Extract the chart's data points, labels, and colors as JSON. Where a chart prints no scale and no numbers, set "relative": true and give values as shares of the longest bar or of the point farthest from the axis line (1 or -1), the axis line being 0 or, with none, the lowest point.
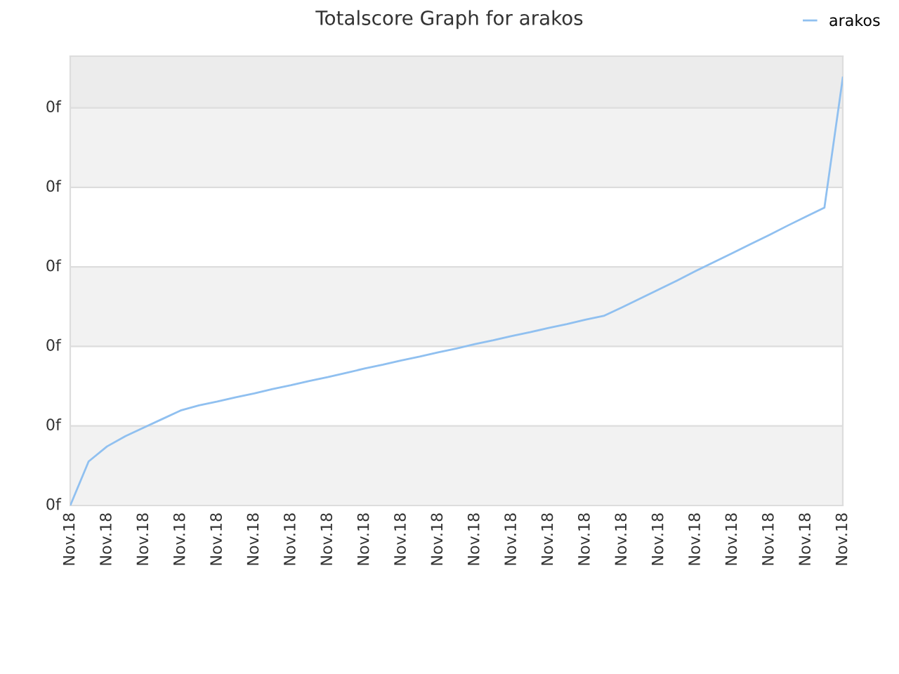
{
  "chart_data": {
    "type": "line",
    "title": "Totalscore Graph for arakos",
    "relative": true,
    "categories": [
      "Nov.18",
      null,
      "Nov.18",
      null,
      "Nov.18",
      null,
      "Nov.18",
      null,
      "Nov.18",
      null,
      "Nov.18",
      null,
      "Nov.18",
      null,
      "Nov.18",
      null,
      "Nov.18",
      null,
      "Nov.18",
      null,
      "Nov.18",
      null,
      "Nov.18",
      null,
      "Nov.18",
      null,
      "Nov.18",
      null,
      "Nov.18",
      null,
      "Nov.18",
      null,
      "Nov.18",
      null,
      "Nov.18",
      null,
      "Nov.18",
      null,
      "Nov.18",
      null,
      "Nov.18",
      null,
      "Nov.18"
    ],
    "series": [
      {
        "name": "arakos",
        "color": "#90c0f0",
        "values": [
          0,
          0.103,
          0.138,
          0.162,
          0.182,
          0.202,
          0.222,
          0.234,
          0.243,
          0.253,
          0.262,
          0.272,
          0.281,
          0.291,
          0.3,
          0.31,
          0.32,
          0.329,
          0.339,
          0.348,
          0.358,
          0.367,
          0.377,
          0.386,
          0.396,
          0.405,
          0.415,
          0.424,
          0.434,
          0.443,
          0.463,
          0.484,
          0.505,
          0.526,
          0.548,
          0.569,
          0.59,
          0.611,
          0.632,
          0.654,
          0.675,
          0.696,
          1
        ]
      }
    ],
    "annotations": [
      "0f",
      "0f",
      "0f",
      "0f",
      "0f",
      "0f"
    ],
    "legend": "top right",
    "marker": "none",
    "line_style": "solid"
  }
}
